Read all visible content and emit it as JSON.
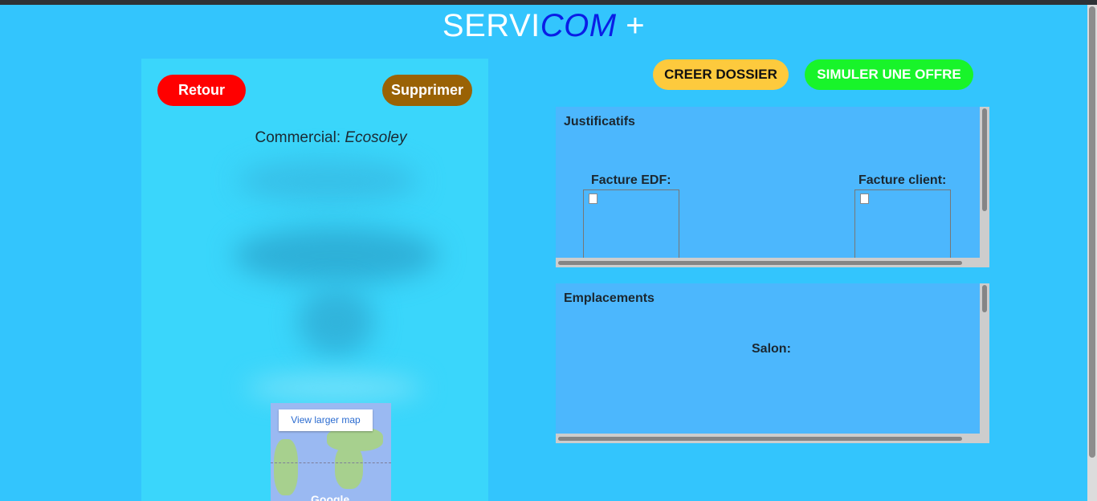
{
  "header": {
    "title_main": "SERVI",
    "title_accent": "COM",
    "title_suffix": " +"
  },
  "left_panel": {
    "retour_label": "Retour",
    "supprimer_label": "Supprimer",
    "commercial_label": "Commercial: ",
    "commercial_value": "Ecosoley"
  },
  "map": {
    "view_larger_label": "View larger map",
    "logo_text": "Google"
  },
  "actions": {
    "creer_label": "CREER DOSSIER",
    "simuler_label": "SIMULER UNE OFFRE"
  },
  "justificatifs": {
    "title": "Justificatifs",
    "facture_edf_label": "Facture EDF:",
    "facture_client_label": "Facture client:"
  },
  "emplacements": {
    "title": "Emplacements",
    "salon_label": "Salon:"
  },
  "colors": {
    "background": "#33c5fd",
    "panel": "#3ad6fb",
    "retour": "#ff0000",
    "supprimer": "#9a6205",
    "creer": "#fdca3d",
    "simuler": "#18f42a",
    "box": "#4cb7fd"
  }
}
